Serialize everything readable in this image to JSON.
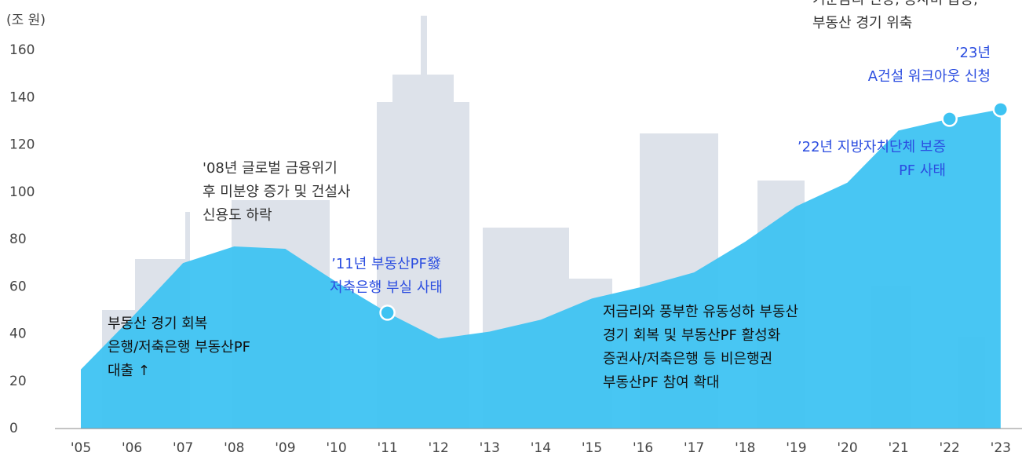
{
  "chart_data": {
    "type": "area",
    "y_label": "(조 원)",
    "categories": [
      "'05",
      "'06",
      "'07",
      "'08",
      "'09",
      "'10",
      "'11",
      "'12",
      "'13",
      "'14",
      "'15",
      "'16",
      "'17",
      "'18",
      "'19",
      "'20",
      "'21",
      "'22",
      "'23"
    ],
    "values": [
      25,
      47,
      70,
      77,
      76,
      62,
      49,
      38,
      41,
      46,
      55,
      60,
      66,
      79,
      94,
      104,
      126,
      131,
      135
    ],
    "color": "#3ec3f2",
    "ylim": [
      0,
      160
    ],
    "yticks": [
      0,
      20,
      40,
      60,
      80,
      100,
      120,
      140,
      160
    ],
    "annotations": [
      {
        "lines": [
          "'08년 글로벌 금융위기",
          "후 미분양 증가 및 건설사",
          "신용도 하락"
        ],
        "color": "#333333"
      },
      {
        "lines": [
          "’11년 부동산PF發",
          "저축은행 부실 사태"
        ],
        "color": "#2b4de0"
      },
      {
        "lines": [
          "부동산 경기 회복",
          "은행/저축은행 부동산PF",
          "대출 ↑"
        ],
        "color": "#111111"
      },
      {
        "lines": [
          "저금리와 풍부한 유동성하 부동산",
          "경기 회복 및 부동산PF 활성화",
          "증권사/저축은행 등 비은행권",
          "부동산PF 참여 확대"
        ],
        "color": "#111111"
      },
      {
        "lines": [
          "’22년 지방자치단체 보증",
          "PF 사태"
        ],
        "color": "#2b4de0"
      },
      {
        "lines": [
          "’23년",
          "A건설 워크아웃 신청"
        ],
        "color": "#2b4de0"
      },
      {
        "lines": [
          "기준금리 인상, 공사비 급등,",
          "부동산 경기 위축"
        ],
        "color": "#333333"
      }
    ]
  }
}
